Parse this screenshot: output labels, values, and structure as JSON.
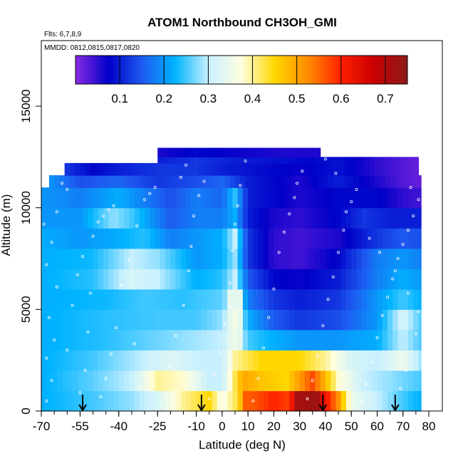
{
  "chart_data": {
    "type": "heatmap",
    "title": "ATOM1 Northbound CH3OH_GMI",
    "flights_label": "Flts: 6,7,8,9",
    "dates_label": "MMDD: 0812,0815,0817,0820",
    "xlabel": "Latitude (deg N)",
    "ylabel": "Altitude (m)",
    "xlim": [
      -70,
      80
    ],
    "ylim": [
      0,
      17500
    ],
    "x_ticks": [
      -70,
      -55,
      -40,
      -25,
      -10,
      0,
      10,
      20,
      30,
      40,
      50,
      60,
      70,
      80
    ],
    "x_tick_labels": [
      "-70",
      "-55",
      "-40",
      "-25",
      "-10",
      "0",
      "10",
      "20",
      "30",
      "40",
      "50",
      "60",
      "70",
      "80"
    ],
    "y_ticks": [
      0,
      5000,
      10000,
      15000
    ],
    "y_tick_labels": [
      "0",
      "5000",
      "10000",
      "15000"
    ],
    "colorbar": {
      "range": [
        0.0,
        0.75
      ],
      "ticks": [
        0.1,
        0.2,
        0.3,
        0.4,
        0.5,
        0.6,
        0.7
      ],
      "tick_labels": [
        "0.1",
        "0.2",
        "0.3",
        "0.4",
        "0.5",
        "0.6",
        "0.7"
      ],
      "colors": [
        "#8a2be2",
        "#0000c8",
        "#1e5af0",
        "#00b4ff",
        "#c8f0ff",
        "#ffffe0",
        "#ffd700",
        "#ff8c00",
        "#ff2000",
        "#c80000",
        "#8b1a1a"
      ]
    },
    "field_rows": [
      {
        "alt": 0,
        "top": 1000,
        "x_from": -70,
        "x_to": 77,
        "points": [
          [
            -70,
            0.22
          ],
          [
            -50,
            0.25
          ],
          [
            -35,
            0.28
          ],
          [
            -25,
            0.32
          ],
          [
            -15,
            0.4
          ],
          [
            -5,
            0.45
          ],
          [
            0,
            0.36
          ],
          [
            5,
            0.42
          ],
          [
            10,
            0.55
          ],
          [
            20,
            0.6
          ],
          [
            25,
            0.58
          ],
          [
            30,
            0.68
          ],
          [
            35,
            0.73
          ],
          [
            40,
            0.62
          ],
          [
            45,
            0.52
          ],
          [
            50,
            0.35
          ],
          [
            60,
            0.3
          ],
          [
            70,
            0.25
          ],
          [
            77,
            0.22
          ]
        ]
      },
      {
        "alt": 1000,
        "top": 2000,
        "x_from": -70,
        "x_to": 77,
        "points": [
          [
            -70,
            0.22
          ],
          [
            -50,
            0.26
          ],
          [
            -35,
            0.3
          ],
          [
            -25,
            0.4
          ],
          [
            -15,
            0.38
          ],
          [
            -5,
            0.3
          ],
          [
            0,
            0.3
          ],
          [
            8,
            0.5
          ],
          [
            15,
            0.47
          ],
          [
            25,
            0.45
          ],
          [
            35,
            0.57
          ],
          [
            40,
            0.48
          ],
          [
            45,
            0.38
          ],
          [
            55,
            0.3
          ],
          [
            65,
            0.28
          ],
          [
            77,
            0.25
          ]
        ]
      },
      {
        "alt": 2000,
        "top": 3000,
        "x_from": -70,
        "x_to": 77,
        "points": [
          [
            -70,
            0.22
          ],
          [
            -50,
            0.25
          ],
          [
            -30,
            0.3
          ],
          [
            -20,
            0.33
          ],
          [
            -10,
            0.3
          ],
          [
            0,
            0.3
          ],
          [
            5,
            0.4
          ],
          [
            15,
            0.45
          ],
          [
            30,
            0.45
          ],
          [
            40,
            0.4
          ],
          [
            50,
            0.32
          ],
          [
            60,
            0.3
          ],
          [
            70,
            0.35
          ],
          [
            77,
            0.28
          ]
        ]
      },
      {
        "alt": 3000,
        "top": 4000,
        "x_from": -70,
        "x_to": 77,
        "points": [
          [
            -70,
            0.22
          ],
          [
            -45,
            0.24
          ],
          [
            -30,
            0.26
          ],
          [
            -15,
            0.28
          ],
          [
            0,
            0.3
          ],
          [
            5,
            0.35
          ],
          [
            10,
            0.25
          ],
          [
            20,
            0.22
          ],
          [
            30,
            0.2
          ],
          [
            45,
            0.2
          ],
          [
            60,
            0.22
          ],
          [
            70,
            0.3
          ],
          [
            77,
            0.25
          ]
        ]
      },
      {
        "alt": 4000,
        "top": 5000,
        "x_from": -70,
        "x_to": 77,
        "points": [
          [
            -70,
            0.22
          ],
          [
            -45,
            0.24
          ],
          [
            -25,
            0.25
          ],
          [
            -10,
            0.25
          ],
          [
            0,
            0.28
          ],
          [
            5,
            0.36
          ],
          [
            10,
            0.22
          ],
          [
            20,
            0.15
          ],
          [
            30,
            0.12
          ],
          [
            45,
            0.14
          ],
          [
            60,
            0.2
          ],
          [
            70,
            0.32
          ],
          [
            77,
            0.25
          ]
        ]
      },
      {
        "alt": 5000,
        "top": 6000,
        "x_from": -70,
        "x_to": 77,
        "points": [
          [
            -70,
            0.22
          ],
          [
            -45,
            0.23
          ],
          [
            -30,
            0.25
          ],
          [
            -15,
            0.24
          ],
          [
            0,
            0.26
          ],
          [
            5,
            0.33
          ],
          [
            10,
            0.18
          ],
          [
            20,
            0.12
          ],
          [
            30,
            0.1
          ],
          [
            45,
            0.12
          ],
          [
            60,
            0.2
          ],
          [
            70,
            0.25
          ],
          [
            77,
            0.22
          ]
        ]
      },
      {
        "alt": 6000,
        "top": 7000,
        "x_from": -70,
        "x_to": 77,
        "points": [
          [
            -70,
            0.22
          ],
          [
            -50,
            0.24
          ],
          [
            -35,
            0.32
          ],
          [
            -25,
            0.3
          ],
          [
            -10,
            0.22
          ],
          [
            0,
            0.24
          ],
          [
            5,
            0.3
          ],
          [
            10,
            0.15
          ],
          [
            20,
            0.08
          ],
          [
            30,
            0.07
          ],
          [
            45,
            0.1
          ],
          [
            60,
            0.18
          ],
          [
            70,
            0.22
          ],
          [
            77,
            0.2
          ]
        ]
      },
      {
        "alt": 7000,
        "top": 8000,
        "x_from": -70,
        "x_to": 77,
        "points": [
          [
            -70,
            0.22
          ],
          [
            -50,
            0.23
          ],
          [
            -35,
            0.3
          ],
          [
            -25,
            0.28
          ],
          [
            -10,
            0.2
          ],
          [
            0,
            0.22
          ],
          [
            5,
            0.28
          ],
          [
            10,
            0.12
          ],
          [
            20,
            0.05
          ],
          [
            30,
            0.04
          ],
          [
            45,
            0.08
          ],
          [
            60,
            0.18
          ],
          [
            70,
            0.2
          ],
          [
            77,
            0.18
          ]
        ]
      },
      {
        "alt": 8000,
        "top": 9000,
        "x_from": -70,
        "x_to": 77,
        "points": [
          [
            -70,
            0.22
          ],
          [
            -55,
            0.2
          ],
          [
            -40,
            0.22
          ],
          [
            -30,
            0.24
          ],
          [
            -20,
            0.18
          ],
          [
            -10,
            0.2
          ],
          [
            0,
            0.22
          ],
          [
            5,
            0.3
          ],
          [
            10,
            0.12
          ],
          [
            20,
            0.05
          ],
          [
            30,
            0.04
          ],
          [
            45,
            0.06
          ],
          [
            60,
            0.12
          ],
          [
            70,
            0.15
          ],
          [
            77,
            0.14
          ]
        ]
      },
      {
        "alt": 9000,
        "top": 10000,
        "x_from": -70,
        "x_to": 77,
        "points": [
          [
            -70,
            0.2
          ],
          [
            -55,
            0.2
          ],
          [
            -42,
            0.28
          ],
          [
            -35,
            0.25
          ],
          [
            -20,
            0.15
          ],
          [
            -10,
            0.18
          ],
          [
            0,
            0.18
          ],
          [
            5,
            0.22
          ],
          [
            10,
            0.1
          ],
          [
            20,
            0.06
          ],
          [
            30,
            0.05
          ],
          [
            45,
            0.08
          ],
          [
            55,
            0.12
          ],
          [
            65,
            0.1
          ],
          [
            77,
            0.1
          ]
        ]
      },
      {
        "alt": 10000,
        "top": 11000,
        "x_from": -70,
        "x_to": 77,
        "points": [
          [
            -70,
            0.2
          ],
          [
            -55,
            0.18
          ],
          [
            -40,
            0.22
          ],
          [
            -30,
            0.18
          ],
          [
            -20,
            0.14
          ],
          [
            -10,
            0.18
          ],
          [
            0,
            0.16
          ],
          [
            5,
            0.24
          ],
          [
            10,
            0.1
          ],
          [
            20,
            0.08
          ],
          [
            30,
            0.06
          ],
          [
            45,
            0.08
          ],
          [
            60,
            0.08
          ],
          [
            70,
            0.05
          ],
          [
            77,
            0.04
          ]
        ]
      },
      {
        "alt": 11000,
        "top": 11600,
        "x_from": -67,
        "x_to": 77,
        "points": [
          [
            -67,
            0.2
          ],
          [
            -55,
            0.14
          ],
          [
            -40,
            0.16
          ],
          [
            -25,
            0.12
          ],
          [
            -10,
            0.14
          ],
          [
            0,
            0.16
          ],
          [
            10,
            0.1
          ],
          [
            20,
            0.08
          ],
          [
            30,
            0.06
          ],
          [
            45,
            0.1
          ],
          [
            60,
            0.06
          ],
          [
            70,
            0.03
          ],
          [
            77,
            0.02
          ]
        ]
      },
      {
        "alt": 11600,
        "top": 12200,
        "x_from": -61,
        "x_to": 76,
        "points": [
          [
            -61,
            0.12
          ],
          [
            -50,
            0.08
          ],
          [
            -40,
            0.1
          ],
          [
            -25,
            0.12
          ],
          [
            -10,
            0.12
          ],
          [
            0,
            0.1
          ],
          [
            10,
            0.09
          ],
          [
            20,
            0.08
          ],
          [
            30,
            0.07
          ],
          [
            45,
            0.09
          ],
          [
            60,
            0.05
          ],
          [
            70,
            0.03
          ],
          [
            76,
            0.02
          ]
        ]
      },
      {
        "alt": 12200,
        "top": 12500,
        "x_from": -25,
        "x_to": 76,
        "points": [
          [
            -25,
            0.1
          ],
          [
            -10,
            0.12
          ],
          [
            5,
            0.1
          ],
          [
            20,
            0.09
          ],
          [
            35,
            0.08
          ],
          [
            45,
            0.09
          ],
          [
            60,
            0.05
          ],
          [
            76,
            0.02
          ]
        ]
      },
      {
        "alt": 12500,
        "top": 12950,
        "x_from": -25,
        "x_to": 38,
        "points": [
          [
            -25,
            0.06
          ],
          [
            -10,
            0.08
          ],
          [
            5,
            0.07
          ],
          [
            20,
            0.06
          ],
          [
            38,
            0.06
          ]
        ]
      }
    ],
    "column_overrides": [
      {
        "x_from": 8,
        "x_to": 16,
        "alt_from": 0,
        "alt_to": 1000,
        "value": 0.56
      },
      {
        "x_from": 28,
        "x_to": 39,
        "alt_from": 0,
        "alt_to": 1000,
        "value": 0.72
      },
      {
        "x_from": 2,
        "x_to": 8,
        "alt_from": 0,
        "alt_to": 6000,
        "value": 0.34
      }
    ],
    "arrow_latitudes": [
      -54,
      -8,
      39,
      67
    ],
    "obs_points": [
      [
        -68,
        500
      ],
      [
        -66,
        1500
      ],
      [
        -68,
        2600
      ],
      [
        -65,
        3500
      ],
      [
        -67,
        4600
      ],
      [
        -64,
        6100
      ],
      [
        -68,
        7200
      ],
      [
        -66,
        8300
      ],
      [
        -69,
        9200
      ],
      [
        -64,
        9800
      ],
      [
        -60,
        3000
      ],
      [
        -58,
        5200
      ],
      [
        -56,
        6700
      ],
      [
        -55,
        900
      ],
      [
        -53,
        2000
      ],
      [
        -52,
        3900
      ],
      [
        -51,
        5800
      ],
      [
        -54,
        7600
      ],
      [
        -50,
        8600
      ],
      [
        -48,
        9300
      ],
      [
        -46,
        9600
      ],
      [
        -44,
        9900
      ],
      [
        -42,
        10100
      ],
      [
        -60,
        10900
      ],
      [
        -62,
        11200
      ],
      [
        -47,
        700
      ],
      [
        -45,
        1600
      ],
      [
        -43,
        2800
      ],
      [
        -41,
        4100
      ],
      [
        -39,
        6200
      ],
      [
        -36,
        7400
      ],
      [
        -33,
        9100
      ],
      [
        -30,
        10400
      ],
      [
        -28,
        10700
      ],
      [
        -26,
        11000
      ],
      [
        -32,
        1200
      ],
      [
        -34,
        3300
      ],
      [
        -22,
        800
      ],
      [
        -20,
        2200
      ],
      [
        -18,
        3700
      ],
      [
        -15,
        5200
      ],
      [
        -13,
        6900
      ],
      [
        -12,
        8100
      ],
      [
        -11,
        9600
      ],
      [
        -9,
        10600
      ],
      [
        -7,
        11300
      ],
      [
        -14,
        12100
      ],
      [
        -16,
        11500
      ],
      [
        -5,
        600
      ],
      [
        -3,
        1800
      ],
      [
        -1,
        2900
      ],
      [
        1,
        4300
      ],
      [
        3,
        6300
      ],
      [
        4,
        7900
      ],
      [
        5,
        9200
      ],
      [
        6,
        10100
      ],
      [
        7,
        11100
      ],
      [
        9,
        12300
      ],
      [
        12,
        500
      ],
      [
        14,
        1600
      ],
      [
        16,
        3100
      ],
      [
        18,
        4600
      ],
      [
        20,
        6000
      ],
      [
        22,
        7800
      ],
      [
        24,
        8800
      ],
      [
        26,
        9700
      ],
      [
        28,
        10500
      ],
      [
        29,
        11200
      ],
      [
        31,
        11800
      ],
      [
        33,
        600
      ],
      [
        35,
        1500
      ],
      [
        37,
        2700
      ],
      [
        39,
        4200
      ],
      [
        41,
        5500
      ],
      [
        43,
        6600
      ],
      [
        45,
        7800
      ],
      [
        47,
        8900
      ],
      [
        48,
        9800
      ],
      [
        50,
        10300
      ],
      [
        52,
        10900
      ],
      [
        40,
        12400
      ],
      [
        44,
        11700
      ],
      [
        54,
        500
      ],
      [
        56,
        1300
      ],
      [
        58,
        2400
      ],
      [
        60,
        3600
      ],
      [
        62,
        4700
      ],
      [
        64,
        5600
      ],
      [
        66,
        6500
      ],
      [
        68,
        7500
      ],
      [
        70,
        8200
      ],
      [
        72,
        8900
      ],
      [
        74,
        9600
      ],
      [
        76,
        10400
      ],
      [
        73,
        11000
      ],
      [
        69,
        1100
      ],
      [
        71,
        2000
      ],
      [
        73,
        2900
      ],
      [
        75,
        3800
      ],
      [
        76,
        4900
      ],
      [
        72,
        5800
      ],
      [
        67,
        6900
      ],
      [
        61,
        7800
      ],
      [
        57,
        8500
      ]
    ],
    "legend": "none",
    "grid": false
  }
}
